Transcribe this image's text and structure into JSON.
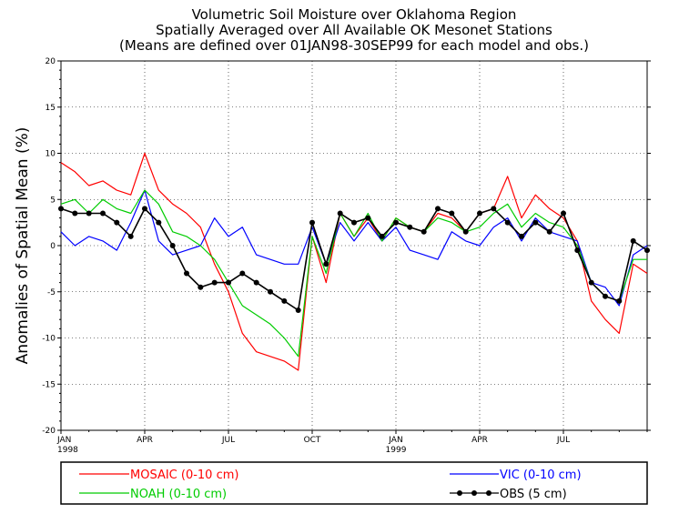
{
  "chart_data": {
    "type": "line",
    "title": [
      "Volumetric Soil Moisture over Oklahoma Region",
      "Spatially Averaged over All Available OK Mesonet Stations",
      "(Means are defined over 01JAN98-30SEP99 for each model and obs.)"
    ],
    "xlabel": "",
    "ylabel": "Anomalies of Spatial Mean (%)",
    "ylim": [
      -20,
      20
    ],
    "yticks": [
      -20,
      -15,
      -10,
      -5,
      0,
      5,
      10,
      15,
      20
    ],
    "xticks": [
      {
        "label": "JAN",
        "sublabel": "1998",
        "month": 0
      },
      {
        "label": "APR",
        "sublabel": "",
        "month": 3
      },
      {
        "label": "JUL",
        "sublabel": "",
        "month": 6
      },
      {
        "label": "OCT",
        "sublabel": "",
        "month": 9
      },
      {
        "label": "JAN",
        "sublabel": "1999",
        "month": 12
      },
      {
        "label": "APR",
        "sublabel": "",
        "month": 15
      },
      {
        "label": "JUL",
        "sublabel": "",
        "month": 18
      }
    ],
    "xrange_months": [
      0,
      21
    ],
    "x_unit": "months since JAN 1998",
    "x": [
      0,
      0.5,
      1,
      1.5,
      2,
      2.5,
      3,
      3.5,
      4,
      4.5,
      5,
      5.5,
      6,
      6.5,
      7,
      7.5,
      8,
      8.5,
      9,
      9.5,
      10,
      10.5,
      11,
      11.5,
      12,
      12.5,
      13,
      13.5,
      14,
      14.5,
      15,
      15.5,
      16,
      16.5,
      17,
      17.5,
      18,
      18.5,
      19,
      19.5,
      20,
      20.5,
      21
    ],
    "series": [
      {
        "name": "MOSAIC (0-10 cm)",
        "color": "#ff0000",
        "markers": false,
        "values": [
          9.0,
          8.0,
          6.5,
          7.0,
          6.0,
          5.5,
          10.0,
          6.0,
          4.5,
          3.5,
          2.0,
          -2.0,
          -5.0,
          -9.5,
          -11.5,
          -12.0,
          -12.5,
          -13.5,
          1.0,
          -4.0,
          3.5,
          1.0,
          3.0,
          0.5,
          3.0,
          2.0,
          1.5,
          3.5,
          3.0,
          1.5,
          3.5,
          4.0,
          7.5,
          3.0,
          5.5,
          4.0,
          3.0,
          0.5,
          -6.0,
          -8.0,
          -9.5,
          -2.0,
          -3.0
        ]
      },
      {
        "name": "VIC (0-10 cm)",
        "color": "#0000ff",
        "markers": false,
        "values": [
          1.5,
          0.0,
          1.0,
          0.5,
          -0.5,
          2.5,
          6.0,
          0.5,
          -1.0,
          -0.5,
          0.0,
          3.0,
          1.0,
          2.0,
          -1.0,
          -1.5,
          -2.0,
          -2.0,
          2.0,
          -2.0,
          2.5,
          0.5,
          2.5,
          0.5,
          2.0,
          -0.5,
          -1.0,
          -1.5,
          1.5,
          0.5,
          0.0,
          2.0,
          3.0,
          0.5,
          3.0,
          1.5,
          1.0,
          0.5,
          -4.0,
          -4.5,
          -6.5,
          -1.0,
          0.0
        ]
      },
      {
        "name": "NOAH (0-10 cm)",
        "color": "#00cc00",
        "markers": false,
        "values": [
          4.5,
          5.0,
          3.5,
          5.0,
          4.0,
          3.5,
          6.0,
          4.5,
          1.5,
          1.0,
          0.0,
          -1.5,
          -4.0,
          -6.5,
          -7.5,
          -8.5,
          -10.0,
          -12.0,
          1.0,
          -3.0,
          3.5,
          1.0,
          3.5,
          0.5,
          3.0,
          2.0,
          1.5,
          3.0,
          2.5,
          1.5,
          2.0,
          3.5,
          4.5,
          2.0,
          3.5,
          2.5,
          2.0,
          0.0,
          -4.0,
          -5.5,
          -6.0,
          -1.5,
          -1.5
        ]
      },
      {
        "name": "OBS (5 cm)",
        "color": "#000000",
        "markers": true,
        "values": [
          4.0,
          3.5,
          3.5,
          3.5,
          2.5,
          1.0,
          4.0,
          2.5,
          0.0,
          -3.0,
          -4.5,
          -4.0,
          -4.0,
          -3.0,
          -4.0,
          -5.0,
          -6.0,
          -7.0,
          2.5,
          -2.0,
          3.5,
          2.5,
          3.0,
          1.0,
          2.5,
          2.0,
          1.5,
          4.0,
          3.5,
          1.5,
          3.5,
          4.0,
          2.5,
          1.0,
          2.5,
          1.5,
          3.5,
          -0.5,
          -4.0,
          -5.5,
          -6.0,
          0.5,
          -0.5
        ]
      }
    ],
    "legend": {
      "placement": "bottom"
    }
  }
}
